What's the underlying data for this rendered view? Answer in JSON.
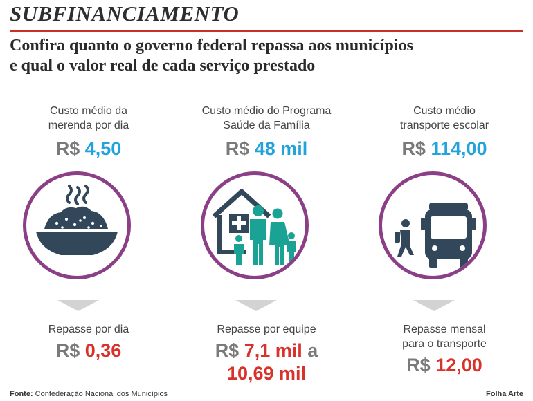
{
  "header": {
    "kicker": "SUBFINANCIAMENTO",
    "headline_line1": "Confira quanto o governo federal repassa aos municípios",
    "headline_line2": "e qual o valor real de cada serviço prestado"
  },
  "colors": {
    "accent_red": "#c8302b",
    "cost_blue": "#23a3dc",
    "repasse_red": "#d8322b",
    "circle_purple": "#8a3f86",
    "icon_dark": "#33475b",
    "icon_teal": "#1aa395"
  },
  "items": [
    {
      "icon": "food-bowl-icon",
      "cost_label_line1": "Custo médio da",
      "cost_label_line2": "merenda por dia",
      "cost_currency": "R$",
      "cost_amount": "4,50",
      "repasse_label_line1": "Repasse por dia",
      "repasse_label_line2": "",
      "repasse_currency": "R$",
      "repasse_amount": "0,36",
      "repasse_connector": "",
      "repasse_amount2": ""
    },
    {
      "icon": "family-health-icon",
      "cost_label_line1": "Custo médio do Programa",
      "cost_label_line2": "Saúde da Família",
      "cost_currency": "R$",
      "cost_amount": "48 mil",
      "repasse_label_line1": "Repasse por equipe",
      "repasse_label_line2": "",
      "repasse_currency": "R$",
      "repasse_amount": "7,1 mil",
      "repasse_connector": "a",
      "repasse_amount2": "10,69 mil"
    },
    {
      "icon": "bus-student-icon",
      "cost_label_line1": "Custo médio",
      "cost_label_line2": "transporte escolar",
      "cost_currency": "R$",
      "cost_amount": "114,00",
      "repasse_label_line1": "Repasse mensal",
      "repasse_label_line2": "para o transporte",
      "repasse_currency": "R$",
      "repasse_amount": "12,00",
      "repasse_connector": "",
      "repasse_amount2": ""
    }
  ],
  "footer": {
    "source_label": "Fonte:",
    "source_text": "Confederação Nacional dos Municípios",
    "credit": "Folha Arte"
  }
}
